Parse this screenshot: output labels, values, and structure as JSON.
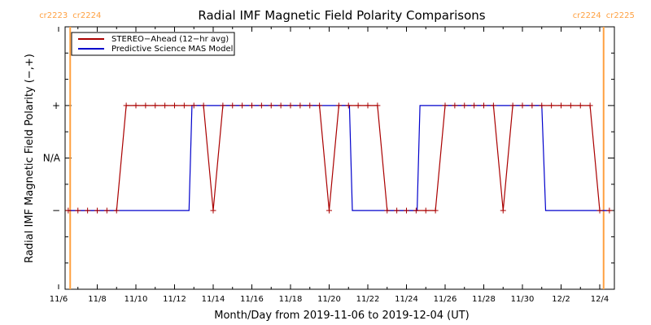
{
  "chart_data": {
    "type": "line",
    "title": "Radial IMF Magnetic Field Polarity Comparisons",
    "xlabel": "Month/Day from 2019-11-06 to 2019-12-04 (UT)",
    "ylabel": "Radial IMF Magnetic Field Polarity (−,+)",
    "xlim": [
      0,
      28.8
    ],
    "ylim": [
      -2.5,
      2.5
    ],
    "x_ticks": [
      {
        "x": 0,
        "label": "11/6"
      },
      {
        "x": 2,
        "label": "11/8"
      },
      {
        "x": 4,
        "label": "11/10"
      },
      {
        "x": 6,
        "label": "11/12"
      },
      {
        "x": 8,
        "label": "11/14"
      },
      {
        "x": 10,
        "label": "11/16"
      },
      {
        "x": 12,
        "label": "11/18"
      },
      {
        "x": 14,
        "label": "11/20"
      },
      {
        "x": 16,
        "label": "11/22"
      },
      {
        "x": 18,
        "label": "11/24"
      },
      {
        "x": 20,
        "label": "11/26"
      },
      {
        "x": 22,
        "label": "11/28"
      },
      {
        "x": 24,
        "label": "11/30"
      },
      {
        "x": 26,
        "label": "12/2"
      },
      {
        "x": 28,
        "label": "12/4"
      }
    ],
    "y_ticks": [
      {
        "y": 1,
        "label": "+"
      },
      {
        "y": 0,
        "label": "N/A"
      },
      {
        "y": -1,
        "label": "−"
      }
    ],
    "markers": [
      {
        "x": 0.6,
        "left_label": "cr2223",
        "right_label": "cr2224",
        "color": "#ffa040"
      },
      {
        "x": 28.2,
        "left_label": "cr2224",
        "right_label": "cr2225",
        "color": "#ffa040"
      }
    ],
    "legend": {
      "position": "top-left"
    },
    "series": [
      {
        "name": "STEREO−Ahead (12−hr avg)",
        "color": "#aa0000",
        "markers": true,
        "x": [
          0.5,
          1,
          1.5,
          2,
          2.5,
          3,
          3.5,
          4,
          4.5,
          5,
          5.5,
          6,
          6.5,
          7,
          7.5,
          8,
          8.5,
          9,
          9.5,
          10,
          10.5,
          11,
          11.5,
          12,
          12.5,
          13,
          13.5,
          14,
          14.5,
          15,
          15.5,
          16,
          16.5,
          17,
          17.5,
          18,
          18.5,
          19,
          19.5,
          20,
          20.5,
          21,
          21.5,
          22,
          22.5,
          23,
          23.5,
          24,
          24.5,
          25,
          25.5,
          26,
          26.5,
          27,
          27.5,
          28,
          28.5
        ],
        "y": [
          -1,
          -1,
          -1,
          -1,
          -1,
          -1,
          1,
          1,
          1,
          1,
          1,
          1,
          1,
          1,
          1,
          -1,
          1,
          1,
          1,
          1,
          1,
          1,
          1,
          1,
          1,
          1,
          1,
          -1,
          1,
          1,
          1,
          1,
          1,
          -1,
          -1,
          -1,
          -1,
          -1,
          -1,
          1,
          1,
          1,
          1,
          1,
          1,
          -1,
          1,
          1,
          1,
          1,
          1,
          1,
          1,
          1,
          1,
          -1,
          -1
        ]
      },
      {
        "name": "Predictive Science MAS Model",
        "color": "#0000cc",
        "markers": false,
        "x": [
          0.5,
          6.75,
          6.9,
          15.05,
          15.2,
          18.55,
          18.7,
          25.0,
          25.2,
          28.4
        ],
        "y": [
          -1,
          -1,
          1,
          1,
          -1,
          -1,
          1,
          1,
          -1,
          -1
        ]
      }
    ]
  }
}
